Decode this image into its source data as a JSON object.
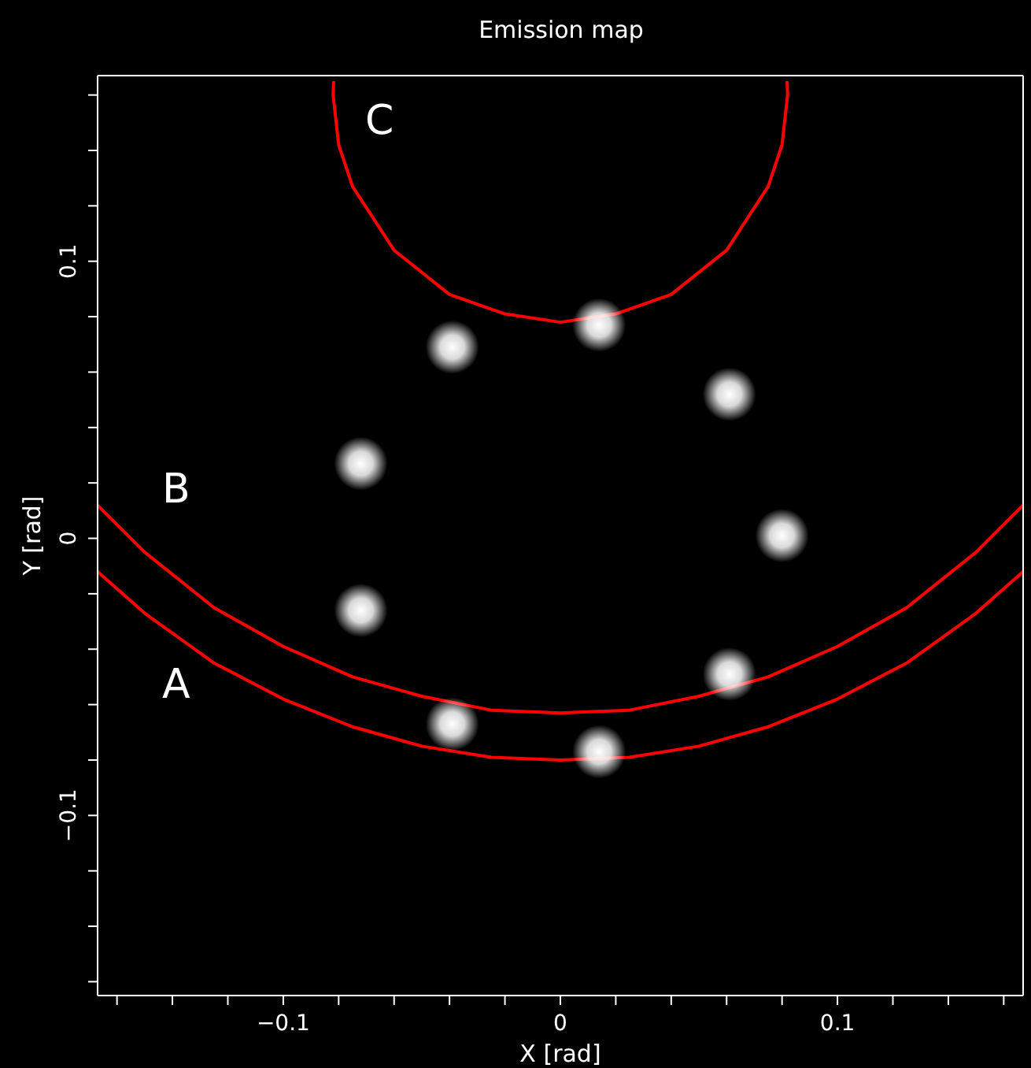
{
  "chart_data": {
    "type": "scatter",
    "title": "Emission map",
    "xlabel": "X [rad]",
    "ylabel": "Y [rad]",
    "xlim": [
      -0.167,
      0.167
    ],
    "ylim": [
      -0.165,
      0.167
    ],
    "xticks": [
      {
        "value": -0.16,
        "label": null
      },
      {
        "value": -0.14,
        "label": null
      },
      {
        "value": -0.12,
        "label": null
      },
      {
        "value": -0.1,
        "label": "−0.1"
      },
      {
        "value": -0.08,
        "label": null
      },
      {
        "value": -0.06,
        "label": null
      },
      {
        "value": -0.04,
        "label": null
      },
      {
        "value": -0.02,
        "label": null
      },
      {
        "value": 0,
        "label": "0"
      },
      {
        "value": 0.02,
        "label": null
      },
      {
        "value": 0.04,
        "label": null
      },
      {
        "value": 0.06,
        "label": null
      },
      {
        "value": 0.08,
        "label": null
      },
      {
        "value": 0.1,
        "label": "0.1"
      },
      {
        "value": 0.12,
        "label": null
      },
      {
        "value": 0.14,
        "label": null
      },
      {
        "value": 0.16,
        "label": null
      }
    ],
    "yticks": [
      {
        "value": -0.16,
        "label": null
      },
      {
        "value": -0.14,
        "label": null
      },
      {
        "value": -0.12,
        "label": null
      },
      {
        "value": -0.1,
        "label": "−0.1"
      },
      {
        "value": -0.08,
        "label": null
      },
      {
        "value": -0.06,
        "label": null
      },
      {
        "value": -0.04,
        "label": null
      },
      {
        "value": -0.02,
        "label": null
      },
      {
        "value": 0,
        "label": "0"
      },
      {
        "value": 0.02,
        "label": null
      },
      {
        "value": 0.04,
        "label": null
      },
      {
        "value": 0.06,
        "label": null
      },
      {
        "value": 0.08,
        "label": null
      },
      {
        "value": 0.1,
        "label": "0.1"
      },
      {
        "value": 0.12,
        "label": null
      },
      {
        "value": 0.14,
        "label": null
      },
      {
        "value": 0.16,
        "label": null
      }
    ],
    "series": [
      {
        "color": "#ffffff",
        "marker": "circle",
        "x": [
          0.014,
          -0.039,
          0.061,
          -0.072,
          0.08,
          -0.072,
          0.061,
          -0.039,
          0.014
        ],
        "values": [
          0.077,
          0.069,
          0.052,
          0.027,
          0.001,
          -0.026,
          -0.049,
          -0.067,
          -0.077
        ]
      },
      {
        "type": "line",
        "color": "#ff0000",
        "marker": "none",
        "line_style": "solid",
        "x": [
          -0.167,
          -0.15,
          -0.125,
          -0.1,
          -0.075,
          -0.05,
          -0.025,
          0,
          0.025,
          0.05,
          0.075,
          0.1,
          0.125,
          0.15,
          0.167
        ],
        "values": [
          -0.012,
          -0.027,
          -0.045,
          -0.058,
          -0.068,
          -0.075,
          -0.079,
          -0.08,
          -0.079,
          -0.075,
          -0.068,
          -0.058,
          -0.045,
          -0.027,
          -0.012
        ]
      },
      {
        "type": "line",
        "color": "#ff0000",
        "marker": "none",
        "line_style": "solid",
        "x": [
          -0.167,
          -0.15,
          -0.125,
          -0.1,
          -0.075,
          -0.05,
          -0.025,
          0,
          0.025,
          0.05,
          0.075,
          0.1,
          0.125,
          0.15,
          0.167
        ],
        "values": [
          0.012,
          -0.005,
          -0.025,
          -0.039,
          -0.05,
          -0.057,
          -0.062,
          -0.063,
          -0.062,
          -0.057,
          -0.05,
          -0.039,
          -0.025,
          -0.005,
          0.012
        ]
      },
      {
        "type": "line",
        "color": "#ff0000",
        "marker": "none",
        "line_style": "solid",
        "x": [
          -0.0818,
          -0.082,
          -0.08,
          -0.075,
          -0.06,
          -0.04,
          -0.02,
          0,
          0.02,
          0.04,
          0.06,
          0.075,
          0.08,
          0.082,
          0.0818
        ],
        "values": [
          0.165,
          0.16,
          0.142,
          0.127,
          0.104,
          0.088,
          0.081,
          0.078,
          0.081,
          0.088,
          0.104,
          0.127,
          0.142,
          0.16,
          0.165
        ]
      }
    ],
    "annotations": [
      "A",
      "B",
      "C"
    ]
  }
}
